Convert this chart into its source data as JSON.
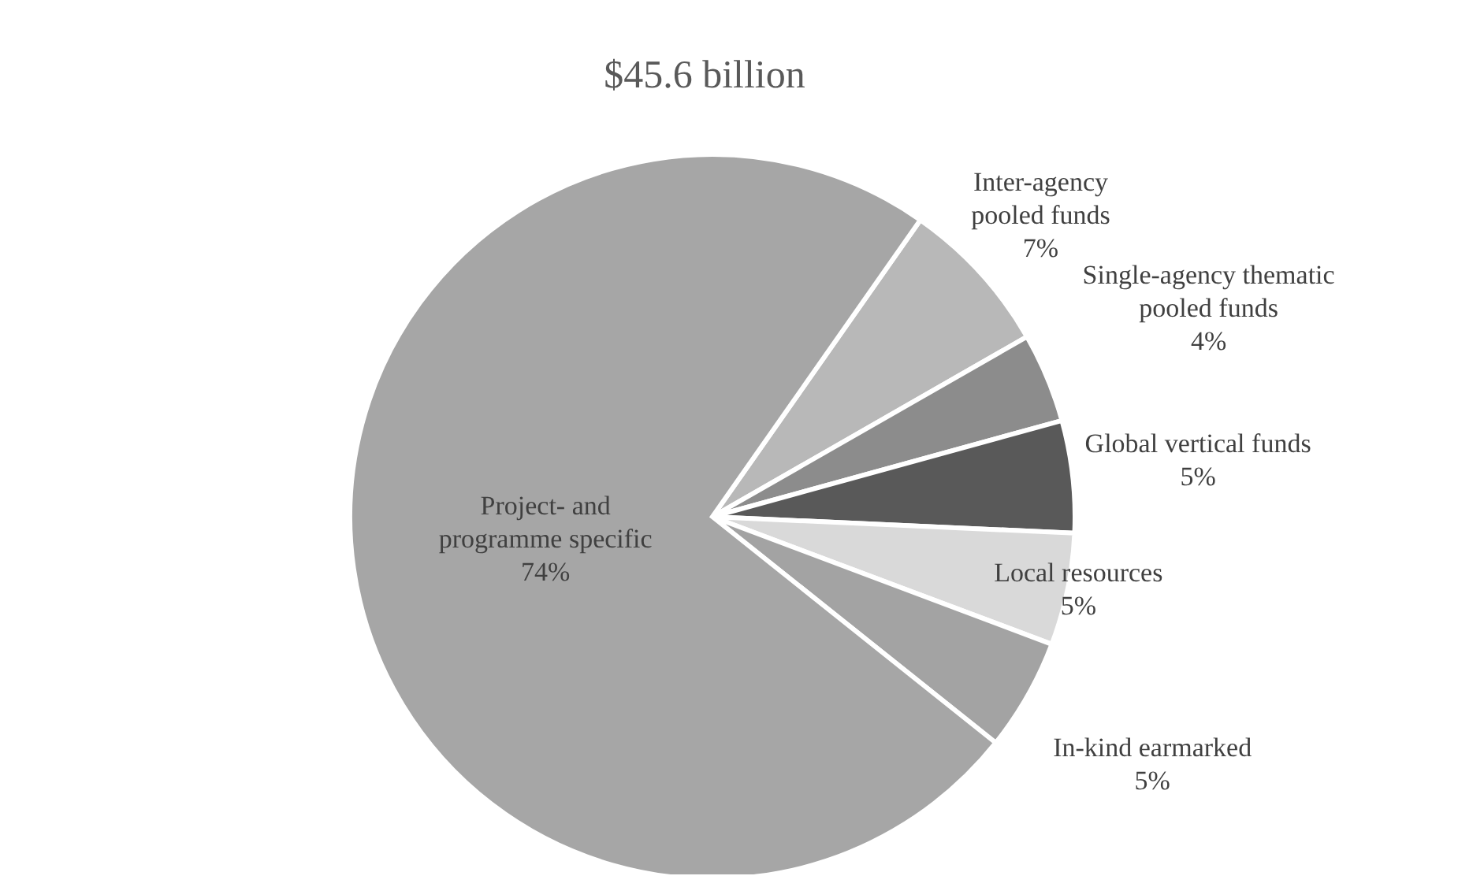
{
  "chart_data": {
    "type": "pie",
    "title": "$45.6 billion",
    "categories": [
      "Inter-agency pooled funds",
      "Single-agency thematic pooled funds",
      "Global vertical funds",
      "Local resources",
      "In-kind earmarked",
      "Project- and programme specific"
    ],
    "values": [
      7,
      4,
      5,
      5,
      5,
      74
    ],
    "value_labels": [
      "7%",
      "4%",
      "5%",
      "5%",
      "5%",
      "74%"
    ],
    "colors": [
      "#b8b8b8",
      "#8c8c8c",
      "#595959",
      "#d9d9d9",
      "#a3a3a3",
      "#a6a6a6"
    ],
    "legend": false
  }
}
